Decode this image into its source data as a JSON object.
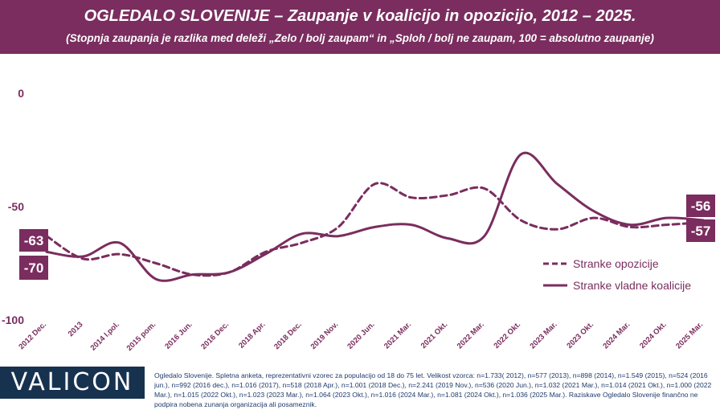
{
  "header": {
    "title": "OGLEDALO SLOVENIJE – Zaupanje v koalicijo in opozicijo, 2012 – 2025.",
    "subtitle": "(Stopnja zaupanja je razlika med deleži „Zelo / bolj zaupam“ in „Sploh / bolj ne zaupam, 100 = absolutno zaupanje)"
  },
  "footer": {
    "logo": "VALICON",
    "note": "Ogledalo Slovenije. Spletna anketa, reprezentativni vzorec za populacijo od 18 do 75 let. Velikost vzorca: n=1.733( 2012), n=577 (2013), n=898 (2014), n=1.549 (2015), n=524 (2016 jun.), n=992 (2016 dec.), n=1.016 (2017), n=518 (2018 Apr.), n=1.001 (2018 Dec.), n=2.241 (2019 Nov.), n=536 (2020 Jun.), n=1.032 (2021 Mar.), n=1.014 (2021 Okt.), n=1.000 (2022 Mar.), n=1.015 (2022 Okt.), n=1.023 (2023 Mar.), n=1.064 (2023 Okt.), n=1.016 (2024 Mar.), n=1.081 (2024 Okt.), n=1.036 (2025 Mar.). Raziskave Ogledalo Slovenije finančno ne podpira nobena zunanja organizacija ali posameznik."
  },
  "colors": {
    "accent": "#7a2d5e",
    "axis_text": "#7a2d5e",
    "logo_bg": "#17324f"
  },
  "chart_data": {
    "type": "line",
    "title": "",
    "categories": [
      "2012 Dec.",
      "2013",
      "2014 I.pol.",
      "2015 pom.",
      "2016 Jun.",
      "2016 Dec.",
      "2018 Apr.",
      "2018 Dec.",
      "2019 Nov.",
      "2020 Jun.",
      "2021 Mar.",
      "2021 Okt.",
      "2022 Mar.",
      "2022 Okt.",
      "2023 Mar.",
      "2023 Okt.",
      "2024 Mar.",
      "2024 Okt.",
      "2025 Mar."
    ],
    "y_ticks": [
      0,
      -50,
      -100
    ],
    "ylim": [
      -100,
      0
    ],
    "series": [
      {
        "name": "Stranke opozicije",
        "style": "dashed",
        "values": [
          -63,
          -73,
          -71,
          -75,
          -80,
          -79,
          -70,
          -66,
          -59,
          -40,
          -46,
          -45,
          -42,
          -56,
          -60,
          -55,
          -59,
          -58,
          -57
        ]
      },
      {
        "name": "Stranke vladne koalicije",
        "style": "solid",
        "values": [
          -70,
          -72,
          -66,
          -82,
          -80,
          -79,
          -71,
          -62,
          -63,
          -59,
          -58,
          -64,
          -63,
          -27,
          -40,
          -52,
          -58,
          -55,
          -56
        ]
      }
    ],
    "end_labels": {
      "left_opozicija": "-63",
      "left_koalicija": "-70",
      "right_koalicija": "-56",
      "right_opozicija": "-57"
    },
    "legend_position": "right"
  }
}
